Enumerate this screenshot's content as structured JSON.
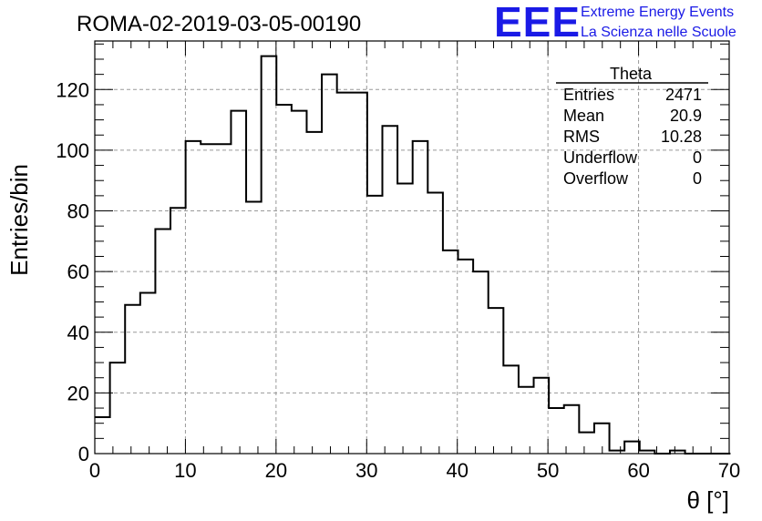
{
  "chart_data": {
    "type": "histogram",
    "title": "ROMA-02-2019-03-05-00190",
    "xlabel": "θ [°]",
    "ylabel": "Entries/bin",
    "xlim": [
      0,
      70
    ],
    "ylim": [
      0,
      136
    ],
    "x_ticks": [
      0,
      10,
      20,
      30,
      40,
      50,
      60,
      70
    ],
    "y_ticks": [
      0,
      20,
      40,
      60,
      80,
      100,
      120
    ],
    "grid": true,
    "bin_width": 1.67,
    "bin_edges_start": 0,
    "values": [
      12,
      30,
      49,
      53,
      74,
      81,
      103,
      102,
      102,
      113,
      83,
      131,
      115,
      113,
      106,
      125,
      119,
      119,
      85,
      108,
      89,
      103,
      86,
      67,
      64,
      60,
      48,
      29,
      22,
      25,
      15,
      16,
      7,
      10,
      1,
      4,
      1,
      0,
      1,
      0,
      0,
      0
    ]
  },
  "logo": {
    "letters": "EEE",
    "line1": "Extreme Energy Events",
    "line2": "La Scienza nelle Scuole"
  },
  "stats": {
    "title": "Theta",
    "rows": [
      {
        "label": "Entries",
        "value": "2471"
      },
      {
        "label": "Mean",
        "value": "20.9"
      },
      {
        "label": "RMS",
        "value": "10.28"
      },
      {
        "label": "Underflow",
        "value": "0"
      },
      {
        "label": "Overflow",
        "value": "0"
      }
    ]
  },
  "colors": {
    "histogram": "#000000",
    "grid": "#999999",
    "logo": "#1a1ae6"
  }
}
